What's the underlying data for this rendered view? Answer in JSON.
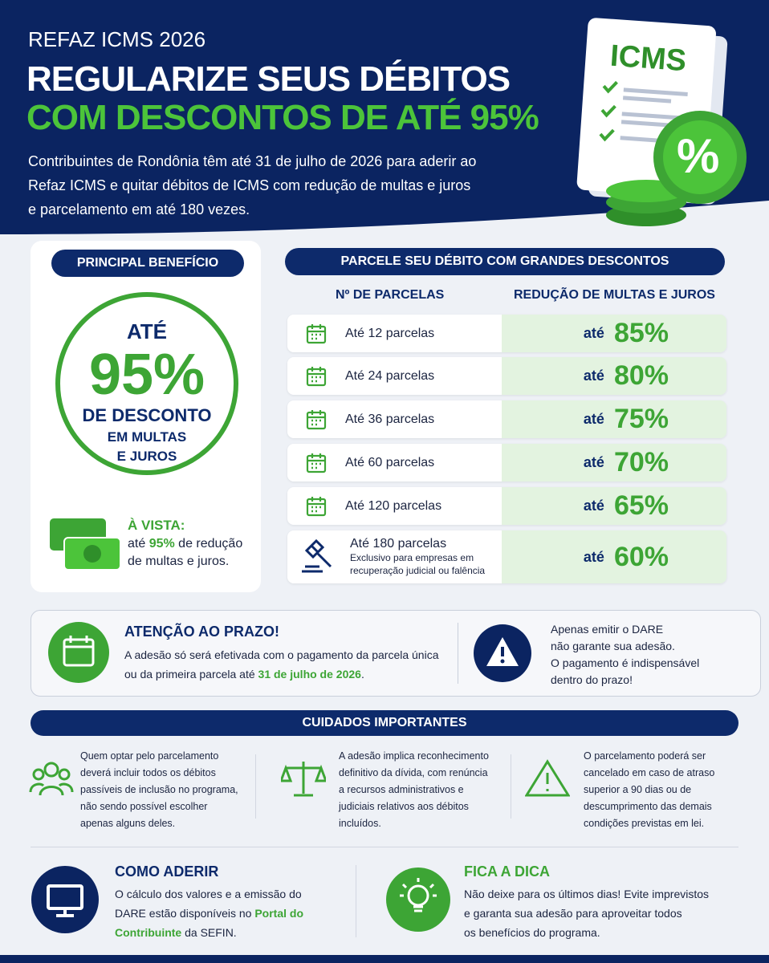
{
  "header": {
    "kicker": "REFAZ ICMS 2026",
    "title_line1": "REGULARIZE SEUS DÉBITOS",
    "title_line2": "COM DESCONTOS DE ATÉ 95%",
    "description": [
      "Contribuintes de Rondônia têm até 31 de julho de 2026 para aderir ao",
      "Refaz ICMS e quitar débitos de ICMS com redução de multas e juros",
      "e parcelamento em até 180 vezes."
    ],
    "badge": "ICMS",
    "badge_symbol": "%"
  },
  "benefit": {
    "heading": "PRINCIPAL BENEFÍCIO",
    "circle": [
      "ATÉ",
      "95%",
      "DE DESCONTO",
      "EM MULTAS",
      "E JUROS"
    ],
    "cash_title": "À VISTA:",
    "cash_text": [
      "até ",
      "95%",
      " de redução",
      "de multas e juros."
    ]
  },
  "table": {
    "title": "PARCELE SEU DÉBITO COM GRANDES DESCONTOS",
    "columns": [
      "Nº DE PARCELAS",
      "REDUÇÃO DE MULTAS E JUROS"
    ],
    "rows": [
      {
        "installments": "Até 12 parcelas",
        "prefix": "até",
        "reduction": "85%"
      },
      {
        "installments": "Até 24 parcelas",
        "prefix": "até",
        "reduction": "80%"
      },
      {
        "installments": "Até 36 parcelas",
        "prefix": "até",
        "reduction": "75%"
      },
      {
        "installments": "Até 60 parcelas",
        "prefix": "até",
        "reduction": "70%"
      },
      {
        "installments": "Até 120 parcelas",
        "prefix": "até",
        "reduction": "65%"
      },
      {
        "installments": "Até 180 parcelas",
        "prefix": "até",
        "reduction": "60%",
        "note": [
          "Exclusivo para empresas em",
          "recuperação judicial ou falência"
        ]
      }
    ]
  },
  "attention": {
    "title": "ATENÇÃO AO PRAZO!",
    "text": [
      "A adesão só será efetivada com o pagamento da parcela única",
      "ou da primeira parcela até ",
      "31 de julho de 2026",
      "."
    ],
    "warning": [
      "Apenas emitir o DARE",
      "não garante sua adesão.",
      "O pagamento é indispensável",
      "dentro do prazo!"
    ]
  },
  "cares": {
    "title": "CUIDADOS IMPORTANTES",
    "items": [
      [
        "Quem optar pelo parcelamento",
        "deverá incluir todos os débitos",
        "passíveis de inclusão no programa,",
        "não sendo possível escolher",
        "apenas alguns deles."
      ],
      [
        "A adesão implica reconhecimento",
        "definitivo da dívida, com renúncia",
        "a recursos administrativos e",
        "judiciais relativos aos débitos",
        "incluídos."
      ],
      [
        "O parcelamento poderá ser",
        "cancelado em caso de atraso",
        "superior a 90 dias ou de",
        "descumprimento das demais",
        "condições previstas em lei."
      ]
    ]
  },
  "how_to": {
    "title": "COMO ADERIR",
    "text": [
      "O cálculo dos valores e a emissão do",
      "DARE estão disponíveis no ",
      "Portal do",
      "Contribuinte",
      " da SEFIN."
    ]
  },
  "tip": {
    "title": "FICA A DICA",
    "text": [
      "Não deixe para os últimos dias! Evite imprevistos",
      "e garanta sua adesão para aproveitar todos",
      "os benefícios do programa."
    ]
  }
}
